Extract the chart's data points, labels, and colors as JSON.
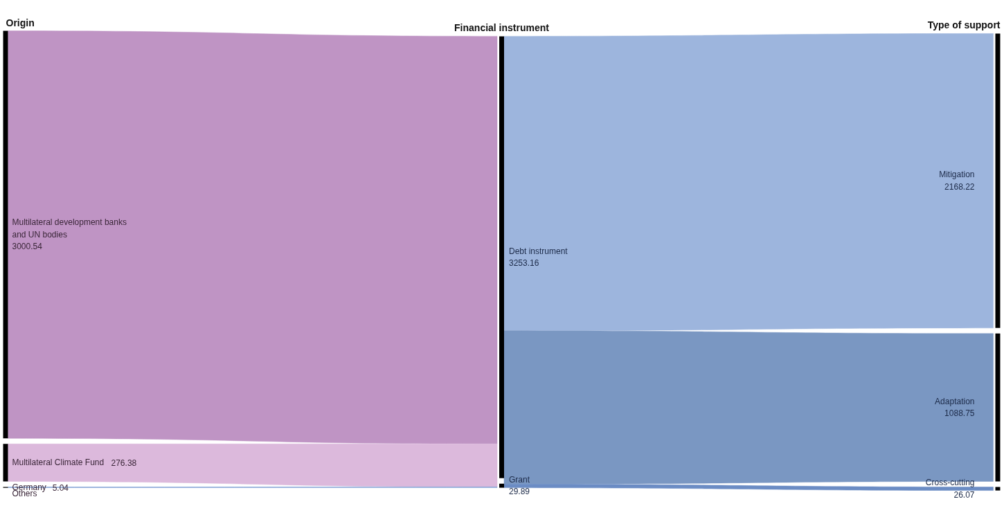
{
  "chart_data": {
    "type": "other",
    "annotations": [
      "Origin",
      "Financial instrument",
      "Type of support"
    ],
    "categories": [
      "Multilateral development banks and UN bodies",
      "Multilateral Climate Fund",
      "Germany",
      "Others",
      "Debt instrument",
      "Grant",
      "Mitigation",
      "Adaptation",
      "Cross-cutting"
    ],
    "series": [
      {
        "values": [
          3000.54,
          276.38,
          5.04,
          null,
          null,
          null,
          null,
          null,
          null
        ],
        "colors": [
          "#bf94c4",
          "#dcb9dc",
          "#7f9fd4",
          null,
          null,
          null,
          null,
          null,
          null
        ]
      },
      {
        "values": [
          null,
          null,
          null,
          null,
          3253.16,
          29.89,
          null,
          null,
          null
        ]
      },
      {
        "values": [
          null,
          null,
          null,
          null,
          null,
          null,
          2168.22,
          1088.75,
          26.07
        ],
        "colors": [
          null,
          null,
          null,
          null,
          null,
          null,
          "#9db5dd",
          "#7a97c2",
          "#6b8cc4"
        ]
      }
    ],
    "data_labels": true
  }
}
